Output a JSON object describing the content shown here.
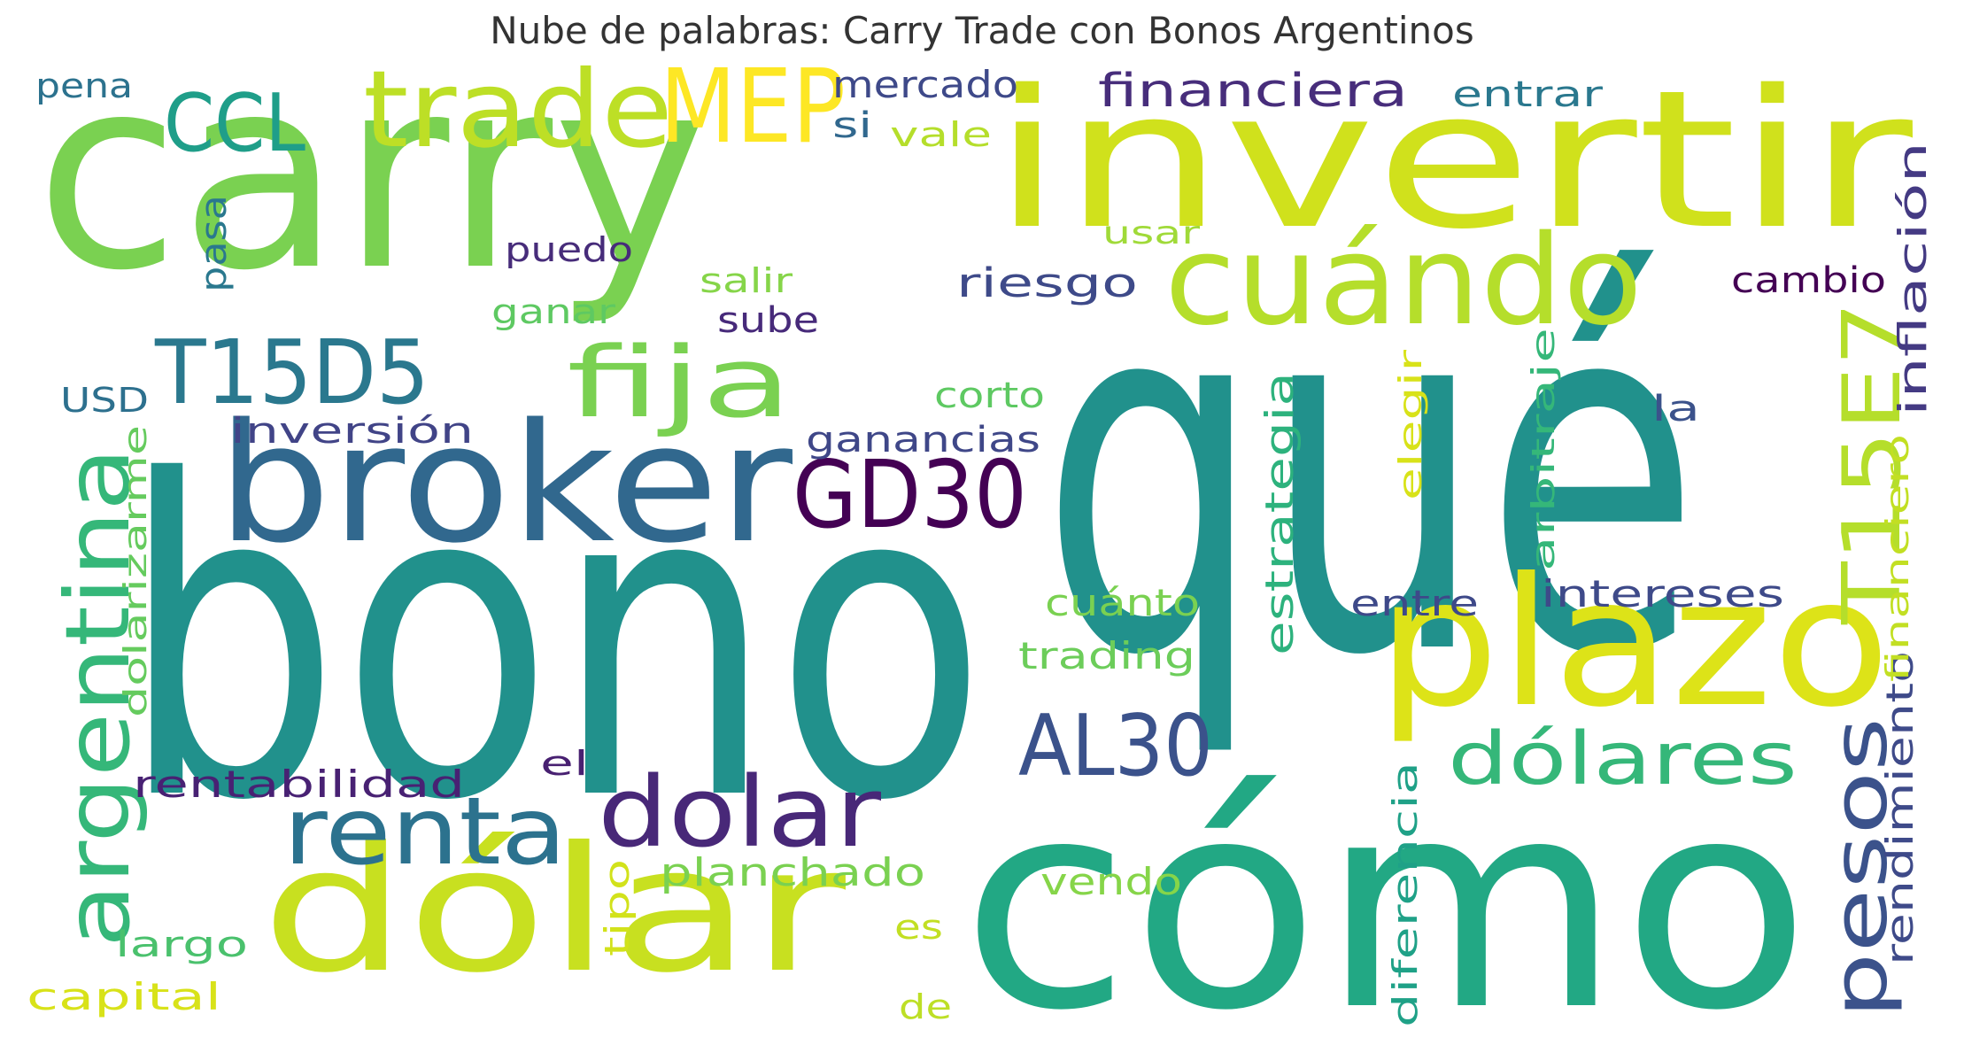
{
  "title": "Nube de palabras: Carry Trade con Bonos Argentinos",
  "words": [
    {
      "text": "carry",
      "color": "#7ad151"
    },
    {
      "text": "invertir",
      "color": "#d0e11c"
    },
    {
      "text": "qué",
      "color": "#21918c"
    },
    {
      "text": "bono",
      "color": "#21918c"
    },
    {
      "text": "cómo",
      "color": "#22a884"
    },
    {
      "text": "dólar",
      "color": "#c8e020"
    },
    {
      "text": "broker",
      "color": "#31688e"
    },
    {
      "text": "plazo",
      "color": "#dde318"
    },
    {
      "text": "cuándo",
      "color": "#b5de2b"
    },
    {
      "text": "trade",
      "color": "#bddf26"
    },
    {
      "text": "MEP",
      "color": "#fde725"
    },
    {
      "text": "CCL",
      "color": "#1f9e89"
    },
    {
      "text": "fija",
      "color": "#7ad151"
    },
    {
      "text": "T15D5",
      "color": "#2a788e"
    },
    {
      "text": "GD30",
      "color": "#440154"
    },
    {
      "text": "AL30",
      "color": "#3b528b"
    },
    {
      "text": "renta",
      "color": "#2c728e"
    },
    {
      "text": "dolar",
      "color": "#482878"
    },
    {
      "text": "argentina",
      "color": "#35b779"
    },
    {
      "text": "dólares",
      "color": "#35b779"
    },
    {
      "text": "pesos",
      "color": "#3b528b"
    },
    {
      "text": "T15E7",
      "color": "#b5de2b"
    },
    {
      "text": "financiera",
      "color": "#472d7b"
    },
    {
      "text": "inflación",
      "color": "#443a83"
    },
    {
      "text": "rendimiento",
      "color": "#3e4a89"
    },
    {
      "text": "mercado",
      "color": "#3e4989"
    },
    {
      "text": "si",
      "color": "#31688e"
    },
    {
      "text": "vale",
      "color": "#b5de2b"
    },
    {
      "text": "entrar",
      "color": "#2a788e"
    },
    {
      "text": "pena",
      "color": "#2c728e"
    },
    {
      "text": "pasa",
      "color": "#2a788e"
    },
    {
      "text": "puedo",
      "color": "#472c7a"
    },
    {
      "text": "usar",
      "color": "#a0da39"
    },
    {
      "text": "salir",
      "color": "#86d549"
    },
    {
      "text": "riesgo",
      "color": "#3e4a89"
    },
    {
      "text": "cambio",
      "color": "#440154"
    },
    {
      "text": "ganar",
      "color": "#5ec962"
    },
    {
      "text": "sube",
      "color": "#472a7a"
    },
    {
      "text": "USD",
      "color": "#2d708e"
    },
    {
      "text": "inversión",
      "color": "#414487"
    },
    {
      "text": "corto",
      "color": "#5ec962"
    },
    {
      "text": "ganancias",
      "color": "#3f4788"
    },
    {
      "text": "la",
      "color": "#3b528b"
    },
    {
      "text": "elegir",
      "color": "#d8e219"
    },
    {
      "text": "arbitraje",
      "color": "#35b779"
    },
    {
      "text": "financiero",
      "color": "#c2df23"
    },
    {
      "text": "estrategia",
      "color": "#2db27d"
    },
    {
      "text": "dolarizarme",
      "color": "#65cb5e"
    },
    {
      "text": "cuánto",
      "color": "#7ad151"
    },
    {
      "text": "entre",
      "color": "#3e4989"
    },
    {
      "text": "intereses",
      "color": "#3e4a89"
    },
    {
      "text": "trading",
      "color": "#6ccd5a"
    },
    {
      "text": "el",
      "color": "#482071"
    },
    {
      "text": "rentabilidad",
      "color": "#482173"
    },
    {
      "text": "planchado",
      "color": "#7ad151"
    },
    {
      "text": "vendo",
      "color": "#86d549"
    },
    {
      "text": "tipo",
      "color": "#d2e21b"
    },
    {
      "text": "diferencia",
      "color": "#1fa187"
    },
    {
      "text": "largo",
      "color": "#4ac16d"
    },
    {
      "text": "es",
      "color": "#c2df23"
    },
    {
      "text": "capital",
      "color": "#d8e219"
    },
    {
      "text": "de",
      "color": "#bddf26"
    }
  ]
}
